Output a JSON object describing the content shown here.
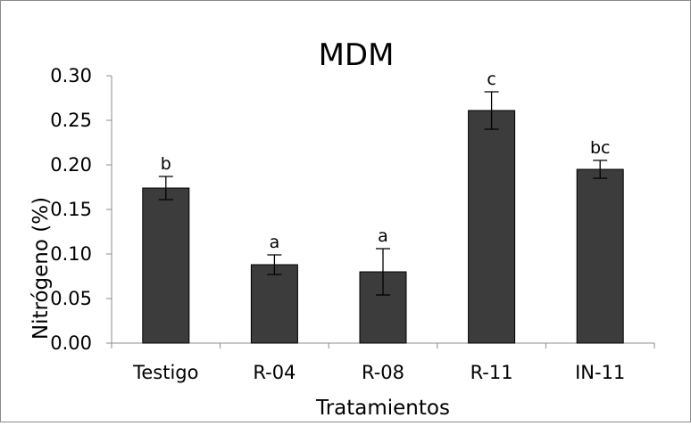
{
  "chart_data": {
    "type": "bar",
    "title": "MDM",
    "xlabel": "Tratamientos",
    "ylabel": "Nitrógeno (%)",
    "categories": [
      "Testigo",
      "R-04",
      "R-08",
      "R-11",
      "IN-11"
    ],
    "values": [
      0.174,
      0.088,
      0.08,
      0.261,
      0.195
    ],
    "errors": [
      0.013,
      0.011,
      0.026,
      0.021,
      0.01
    ],
    "significance_labels": [
      "b",
      "a",
      "a",
      "c",
      "bc"
    ],
    "ylim": [
      0,
      0.3
    ],
    "yticks": [
      "0.00",
      "0.05",
      "0.10",
      "0.15",
      "0.20",
      "0.25",
      "0.30"
    ],
    "grid": false,
    "legend": "none",
    "bar_color": "#3c3c3c",
    "axis_color": "#8c8c8c"
  }
}
